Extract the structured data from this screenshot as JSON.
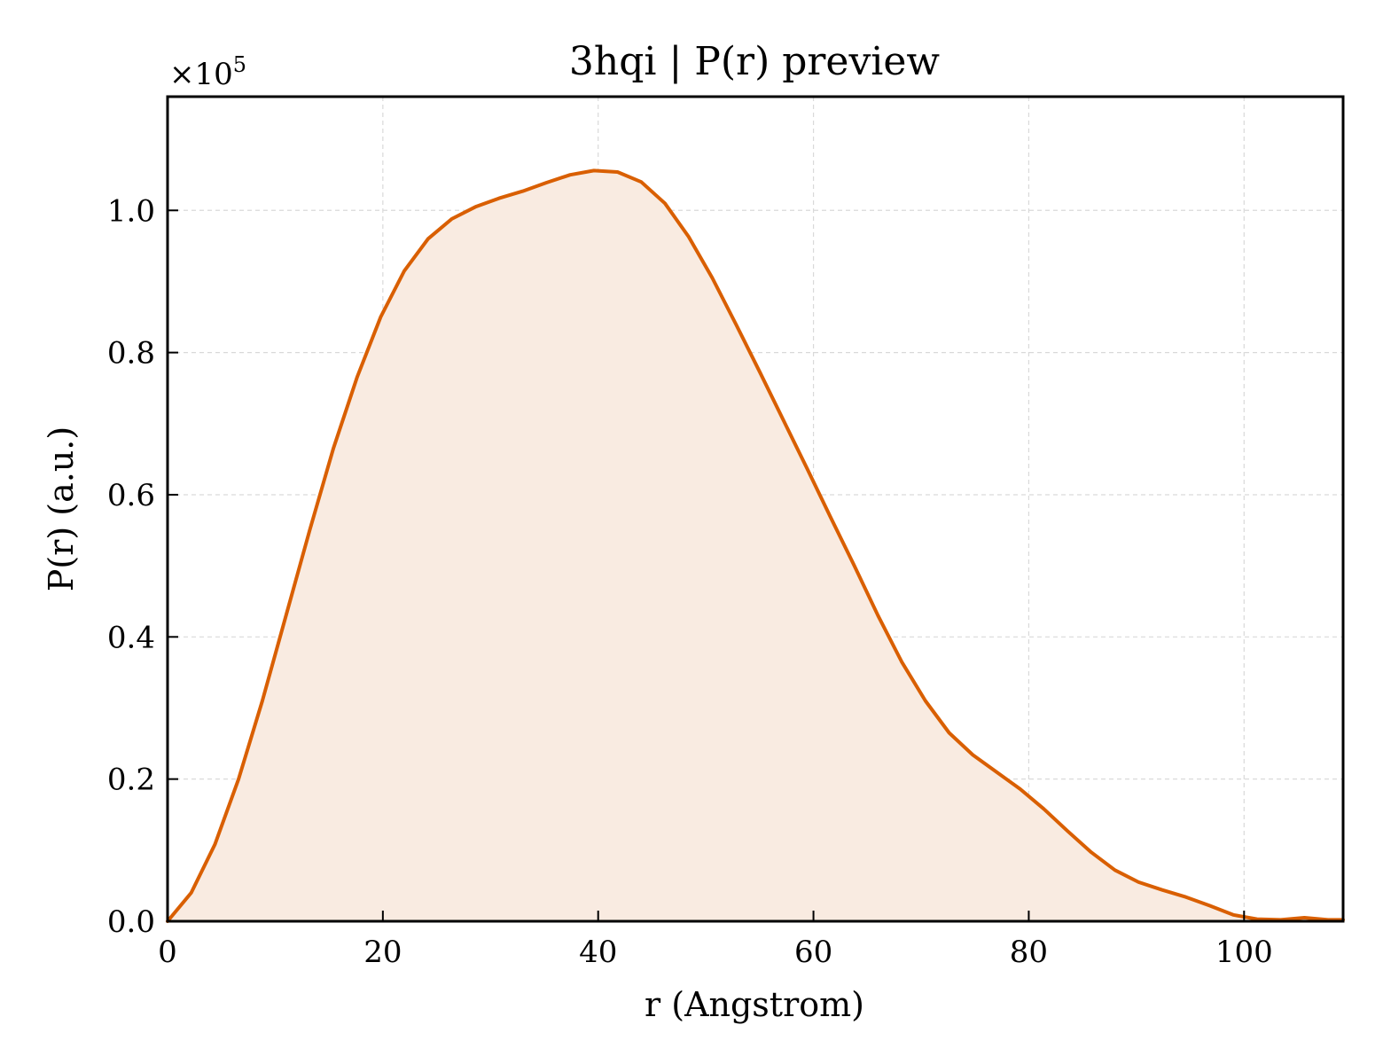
{
  "chart_data": {
    "type": "area",
    "title": "3hqi | P(r) preview",
    "xlabel": "r (Angstrom)",
    "ylabel": "P(r) (a.u.)",
    "y_offset_label": {
      "base": "×10",
      "exponent": "5"
    },
    "xlim": [
      0,
      109.2
    ],
    "ylim": [
      0,
      1.16
    ],
    "x_ticks": [
      0,
      20,
      40,
      60,
      80,
      100
    ],
    "y_ticks": [
      0.0,
      0.2,
      0.4,
      0.6,
      0.8,
      1.0
    ],
    "x_tick_labels": [
      "0",
      "20",
      "40",
      "60",
      "80",
      "100"
    ],
    "y_tick_labels": [
      "0.0",
      "0.2",
      "0.4",
      "0.6",
      "0.8",
      "1.0"
    ],
    "grid": true,
    "colors": {
      "line": "#d95f02",
      "fill": "#f9ebe1",
      "grid": "#d9d9d9"
    },
    "series": [
      {
        "x": [
          0,
          2.2,
          4.4,
          6.6,
          8.8,
          11.0,
          13.2,
          15.4,
          17.6,
          19.8,
          22.0,
          24.2,
          26.4,
          28.6,
          30.8,
          33.0,
          35.2,
          37.4,
          39.6,
          41.8,
          44.0,
          46.2,
          48.4,
          50.6,
          52.8,
          55.0,
          57.2,
          59.4,
          61.6,
          63.8,
          66.0,
          68.2,
          70.4,
          72.6,
          74.8,
          77.0,
          79.2,
          81.4,
          83.6,
          85.8,
          88.0,
          90.2,
          92.4,
          94.6,
          96.8,
          99.0,
          101.2,
          103.4,
          105.6,
          107.8,
          109.2
        ],
        "values": [
          0.0,
          0.04,
          0.108,
          0.2,
          0.31,
          0.43,
          0.55,
          0.665,
          0.765,
          0.85,
          0.915,
          0.96,
          0.988,
          1.005,
          1.017,
          1.027,
          1.039,
          1.05,
          1.056,
          1.054,
          1.04,
          1.01,
          0.963,
          0.905,
          0.84,
          0.773,
          0.705,
          0.637,
          0.568,
          0.5,
          0.43,
          0.365,
          0.31,
          0.265,
          0.234,
          0.21,
          0.186,
          0.158,
          0.127,
          0.097,
          0.072,
          0.055,
          0.044,
          0.034,
          0.022,
          0.009,
          0.003,
          0.002,
          0.005,
          0.002,
          0.002
        ]
      }
    ]
  }
}
